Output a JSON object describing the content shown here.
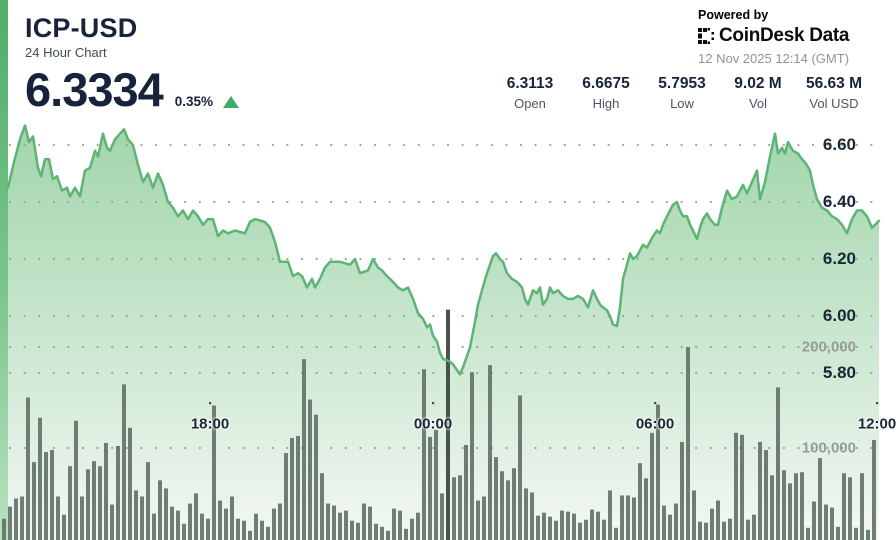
{
  "header": {
    "pair": "ICP-USD",
    "subtitle": "24 Hour Chart",
    "price": "6.3334",
    "change_percent": "0.35%",
    "change_direction": "up",
    "powered_by": "Powered by",
    "brand": "CoinDesk Data",
    "timestamp": "12 Nov 2025 12:14 (GMT)"
  },
  "stats": [
    {
      "value": "6.3113",
      "label": "Open"
    },
    {
      "value": "6.6675",
      "label": "High"
    },
    {
      "value": "5.7953",
      "label": "Low"
    },
    {
      "value": "9.02 M",
      "label": "Vol"
    },
    {
      "value": "56.63 M",
      "label": "Vol USD"
    }
  ],
  "colors": {
    "accent_green": "#41ab63",
    "line_green": "#5cb475",
    "area_top": "#9fd4a9",
    "area_bottom": "#f3f8f3",
    "stripe_top": "#4fae68",
    "stripe_bottom": "#b9e2c1",
    "volume_bar": "#64736a",
    "volume_bar_dark": "#39443d",
    "text_dark": "#17233a",
    "text_gray": "#4b5563",
    "text_muted": "#8d9499",
    "vol_label_gray": "#949e96",
    "grid_dot": "#9aa49c"
  },
  "chart_data": {
    "type": "area",
    "title": "ICP-USD 24 Hour Chart",
    "last_price": 6.3334,
    "open": 6.3113,
    "high": 6.6675,
    "low": 5.7953,
    "volume": "9.02 M",
    "volume_usd": "56.63 M",
    "x_ticks": [
      "18:00",
      "00:00",
      "06:00",
      "12:00"
    ],
    "y_ticks_price": [
      6.6,
      6.4,
      6.2,
      6.0,
      5.8
    ],
    "y_ticks_volume": [
      200000,
      100000
    ],
    "y_ticks_volume_labels": [
      "200,000",
      "100,000"
    ],
    "grid": "dotted",
    "legend": "none",
    "price_points": [
      [
        8,
        6.45
      ],
      [
        14,
        6.54
      ],
      [
        20,
        6.62
      ],
      [
        25,
        6.668
      ],
      [
        29,
        6.61
      ],
      [
        33,
        6.63
      ],
      [
        38,
        6.52
      ],
      [
        41,
        6.49
      ],
      [
        45,
        6.55
      ],
      [
        49,
        6.55
      ],
      [
        53,
        6.48
      ],
      [
        57,
        6.49
      ],
      [
        62,
        6.44
      ],
      [
        67,
        6.45
      ],
      [
        70,
        6.42
      ],
      [
        75,
        6.45
      ],
      [
        80,
        6.42
      ],
      [
        85,
        6.51
      ],
      [
        90,
        6.52
      ],
      [
        95,
        6.58
      ],
      [
        98,
        6.56
      ],
      [
        103,
        6.64
      ],
      [
        107,
        6.59
      ],
      [
        110,
        6.58
      ],
      [
        115,
        6.62
      ],
      [
        120,
        6.64
      ],
      [
        124,
        6.655
      ],
      [
        128,
        6.62
      ],
      [
        133,
        6.6
      ],
      [
        138,
        6.53
      ],
      [
        143,
        6.47
      ],
      [
        148,
        6.5
      ],
      [
        153,
        6.45
      ],
      [
        158,
        6.5
      ],
      [
        163,
        6.46
      ],
      [
        168,
        6.4
      ],
      [
        173,
        6.38
      ],
      [
        178,
        6.35
      ],
      [
        183,
        6.37
      ],
      [
        188,
        6.34
      ],
      [
        193,
        6.37
      ],
      [
        198,
        6.35
      ],
      [
        203,
        6.32
      ],
      [
        208,
        6.34
      ],
      [
        213,
        6.34
      ],
      [
        218,
        6.28
      ],
      [
        223,
        6.3
      ],
      [
        228,
        6.29
      ],
      [
        235,
        6.3
      ],
      [
        245,
        6.29
      ],
      [
        250,
        6.33
      ],
      [
        255,
        6.34
      ],
      [
        265,
        6.33
      ],
      [
        270,
        6.31
      ],
      [
        275,
        6.26
      ],
      [
        280,
        6.19
      ],
      [
        288,
        6.19
      ],
      [
        293,
        6.14
      ],
      [
        298,
        6.15
      ],
      [
        302,
        6.14
      ],
      [
        307,
        6.1
      ],
      [
        312,
        6.13
      ],
      [
        315,
        6.1
      ],
      [
        320,
        6.13
      ],
      [
        325,
        6.17
      ],
      [
        330,
        6.19
      ],
      [
        340,
        6.19
      ],
      [
        350,
        6.18
      ],
      [
        355,
        6.2
      ],
      [
        360,
        6.15
      ],
      [
        368,
        6.16
      ],
      [
        373,
        6.2
      ],
      [
        378,
        6.17
      ],
      [
        382,
        6.16
      ],
      [
        387,
        6.14
      ],
      [
        393,
        6.12
      ],
      [
        398,
        6.1
      ],
      [
        403,
        6.09
      ],
      [
        408,
        6.1
      ],
      [
        413,
        6.06
      ],
      [
        418,
        6.01
      ],
      [
        423,
        5.99
      ],
      [
        427,
        5.96
      ],
      [
        430,
        5.97
      ],
      [
        433,
        5.93
      ],
      [
        437,
        5.91
      ],
      [
        440,
        5.87
      ],
      [
        443,
        5.85
      ],
      [
        450,
        5.84
      ],
      [
        453,
        5.83
      ],
      [
        457,
        5.81
      ],
      [
        460,
        5.795
      ],
      [
        463,
        5.82
      ],
      [
        467,
        5.86
      ],
      [
        470,
        5.89
      ],
      [
        475,
        5.98
      ],
      [
        478,
        6.04
      ],
      [
        482,
        6.09
      ],
      [
        487,
        6.15
      ],
      [
        490,
        6.18
      ],
      [
        493,
        6.21
      ],
      [
        496,
        6.22
      ],
      [
        500,
        6.2
      ],
      [
        503,
        6.19
      ],
      [
        507,
        6.15
      ],
      [
        512,
        6.13
      ],
      [
        517,
        6.12
      ],
      [
        522,
        6.1
      ],
      [
        525,
        6.06
      ],
      [
        528,
        6.04
      ],
      [
        533,
        6.09
      ],
      [
        537,
        6.08
      ],
      [
        540,
        6.1
      ],
      [
        543,
        6.04
      ],
      [
        547,
        6.06
      ],
      [
        550,
        6.1
      ],
      [
        553,
        6.08
      ],
      [
        558,
        6.09
      ],
      [
        563,
        6.07
      ],
      [
        568,
        6.06
      ],
      [
        573,
        6.06
      ],
      [
        578,
        6.07
      ],
      [
        583,
        6.06
      ],
      [
        588,
        6.03
      ],
      [
        593,
        6.09
      ],
      [
        597,
        6.06
      ],
      [
        600,
        6.04
      ],
      [
        603,
        6.03
      ],
      [
        607,
        6.02
      ],
      [
        610,
        6.0
      ],
      [
        613,
        5.97
      ],
      [
        617,
        5.965
      ],
      [
        620,
        6.03
      ],
      [
        623,
        6.13
      ],
      [
        627,
        6.18
      ],
      [
        630,
        6.22
      ],
      [
        633,
        6.2
      ],
      [
        637,
        6.21
      ],
      [
        640,
        6.23
      ],
      [
        643,
        6.25
      ],
      [
        647,
        6.24
      ],
      [
        650,
        6.26
      ],
      [
        653,
        6.28
      ],
      [
        657,
        6.3
      ],
      [
        660,
        6.29
      ],
      [
        663,
        6.32
      ],
      [
        667,
        6.35
      ],
      [
        670,
        6.37
      ],
      [
        673,
        6.39
      ],
      [
        677,
        6.4
      ],
      [
        680,
        6.37
      ],
      [
        683,
        6.35
      ],
      [
        687,
        6.35
      ],
      [
        690,
        6.32
      ],
      [
        693,
        6.3
      ],
      [
        697,
        6.27
      ],
      [
        700,
        6.31
      ],
      [
        703,
        6.34
      ],
      [
        707,
        6.36
      ],
      [
        710,
        6.34
      ],
      [
        715,
        6.32
      ],
      [
        718,
        6.32
      ],
      [
        722,
        6.38
      ],
      [
        727,
        6.44
      ],
      [
        732,
        6.41
      ],
      [
        737,
        6.42
      ],
      [
        743,
        6.46
      ],
      [
        747,
        6.43
      ],
      [
        752,
        6.47
      ],
      [
        757,
        6.51
      ],
      [
        760,
        6.41
      ],
      [
        765,
        6.47
      ],
      [
        770,
        6.56
      ],
      [
        775,
        6.64
      ],
      [
        778,
        6.57
      ],
      [
        782,
        6.59
      ],
      [
        785,
        6.57
      ],
      [
        788,
        6.61
      ],
      [
        793,
        6.58
      ],
      [
        798,
        6.57
      ],
      [
        802,
        6.55
      ],
      [
        805,
        6.54
      ],
      [
        810,
        6.51
      ],
      [
        813,
        6.46
      ],
      [
        817,
        6.41
      ],
      [
        822,
        6.38
      ],
      [
        827,
        6.37
      ],
      [
        832,
        6.35
      ],
      [
        837,
        6.34
      ],
      [
        842,
        6.32
      ],
      [
        847,
        6.29
      ],
      [
        852,
        6.34
      ],
      [
        857,
        6.37
      ],
      [
        862,
        6.37
      ],
      [
        867,
        6.35
      ],
      [
        872,
        6.31
      ],
      [
        875,
        6.32
      ],
      [
        879,
        6.334
      ]
    ],
    "volume_bars_thousands": [
      30,
      42,
      50,
      52,
      150,
      86,
      130,
      96,
      98,
      52,
      34,
      82,
      127,
      52,
      79,
      87,
      82,
      105,
      44,
      102,
      163,
      120,
      58,
      52,
      86,
      35,
      68,
      60,
      42,
      38,
      25,
      45,
      55,
      35,
      30,
      142,
      48,
      40,
      52,
      30,
      28,
      18,
      35,
      28,
      22,
      40,
      45,
      95,
      110,
      112,
      188,
      148,
      133,
      75,
      45,
      43,
      36,
      38,
      28,
      26,
      45,
      42,
      25,
      22,
      18,
      40,
      38,
      20,
      30,
      36,
      178,
      111,
      118,
      55,
      237,
      71,
      73,
      103,
      175,
      48,
      52,
      182,
      91,
      77,
      68,
      80,
      152,
      60,
      56,
      33,
      36,
      32,
      28,
      38,
      37,
      35,
      26,
      29,
      39,
      37,
      29,
      58,
      21,
      53,
      53,
      51,
      85,
      70,
      115,
      143,
      43,
      34,
      45,
      106,
      200,
      58,
      27,
      26,
      40,
      48,
      27,
      30,
      115,
      113,
      29,
      34,
      106,
      98,
      73,
      160,
      78,
      65,
      75,
      76,
      21,
      47,
      90,
      44,
      41,
      22,
      75,
      71,
      21,
      75,
      19,
      108
    ],
    "highlight_bar_index": 74
  }
}
